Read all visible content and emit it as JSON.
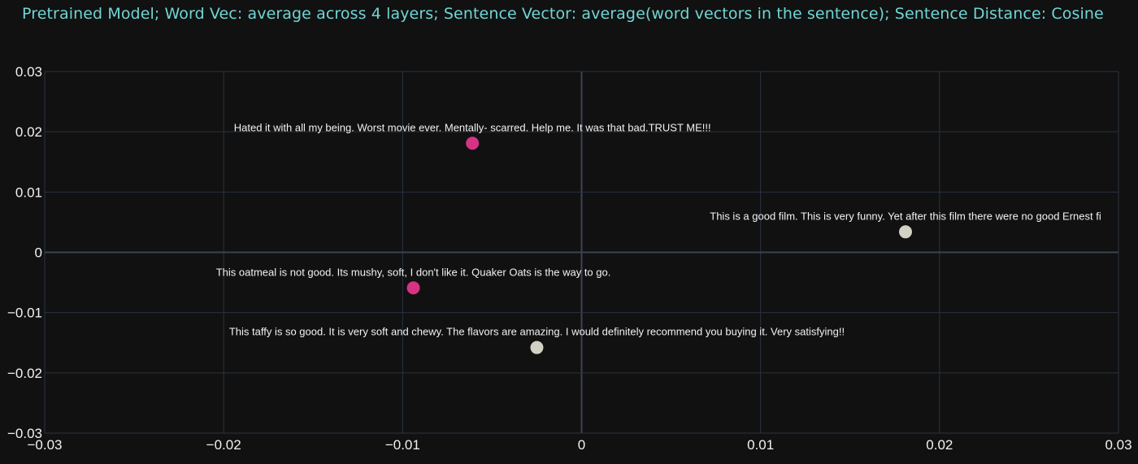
{
  "chart_data": {
    "type": "scatter",
    "title": "Pretrained Model; Word Vec: average across 4 layers; Sentence Vector: average(word vectors in the sentence); Sentence Distance: Cosine",
    "xlabel": "",
    "ylabel": "",
    "xlim": [
      -0.03,
      0.03
    ],
    "ylim": [
      -0.03,
      0.03
    ],
    "x_ticks": [
      -0.03,
      -0.02,
      -0.01,
      0,
      0.01,
      0.02,
      0.03
    ],
    "x_tick_labels": [
      "−0.03",
      "−0.02",
      "−0.01",
      "0",
      "0.01",
      "0.02",
      "0.03"
    ],
    "y_ticks": [
      0.03,
      0.02,
      0.01,
      0,
      -0.01,
      -0.02,
      -0.03
    ],
    "y_tick_labels": [
      "0.03",
      "0.02",
      "0.01",
      "0",
      "−0.01",
      "−0.02",
      "−0.03"
    ],
    "grid": true,
    "points": [
      {
        "x": -0.0061,
        "y": 0.0181,
        "color": "#d63384",
        "text": "Hated it with all my being. Worst movie ever. Mentally- scarred. Help me. It was that bad.TRUST ME!!!"
      },
      {
        "x": 0.0181,
        "y": 0.0034,
        "color": "#d2d2c4",
        "text": "This is a good film. This is very funny. Yet after this film there were no good Ernest fi"
      },
      {
        "x": -0.0094,
        "y": -0.0059,
        "color": "#d63384",
        "text": "This oatmeal is not good. Its mushy, soft, I don't like it. Quaker Oats is the way to go."
      },
      {
        "x": -0.0025,
        "y": -0.0158,
        "color": "#d2d2c4",
        "text": "This taffy is so good.  It is very soft and chewy.  The flavors are amazing.  I would definitely recommend you buying it.  Very satisfying!!"
      }
    ]
  },
  "colors": {
    "background": "#111111",
    "grid": "#2a3340",
    "zero_line": "#3a4450",
    "title": "#6fd6d4",
    "text": "#f2f2f2"
  }
}
